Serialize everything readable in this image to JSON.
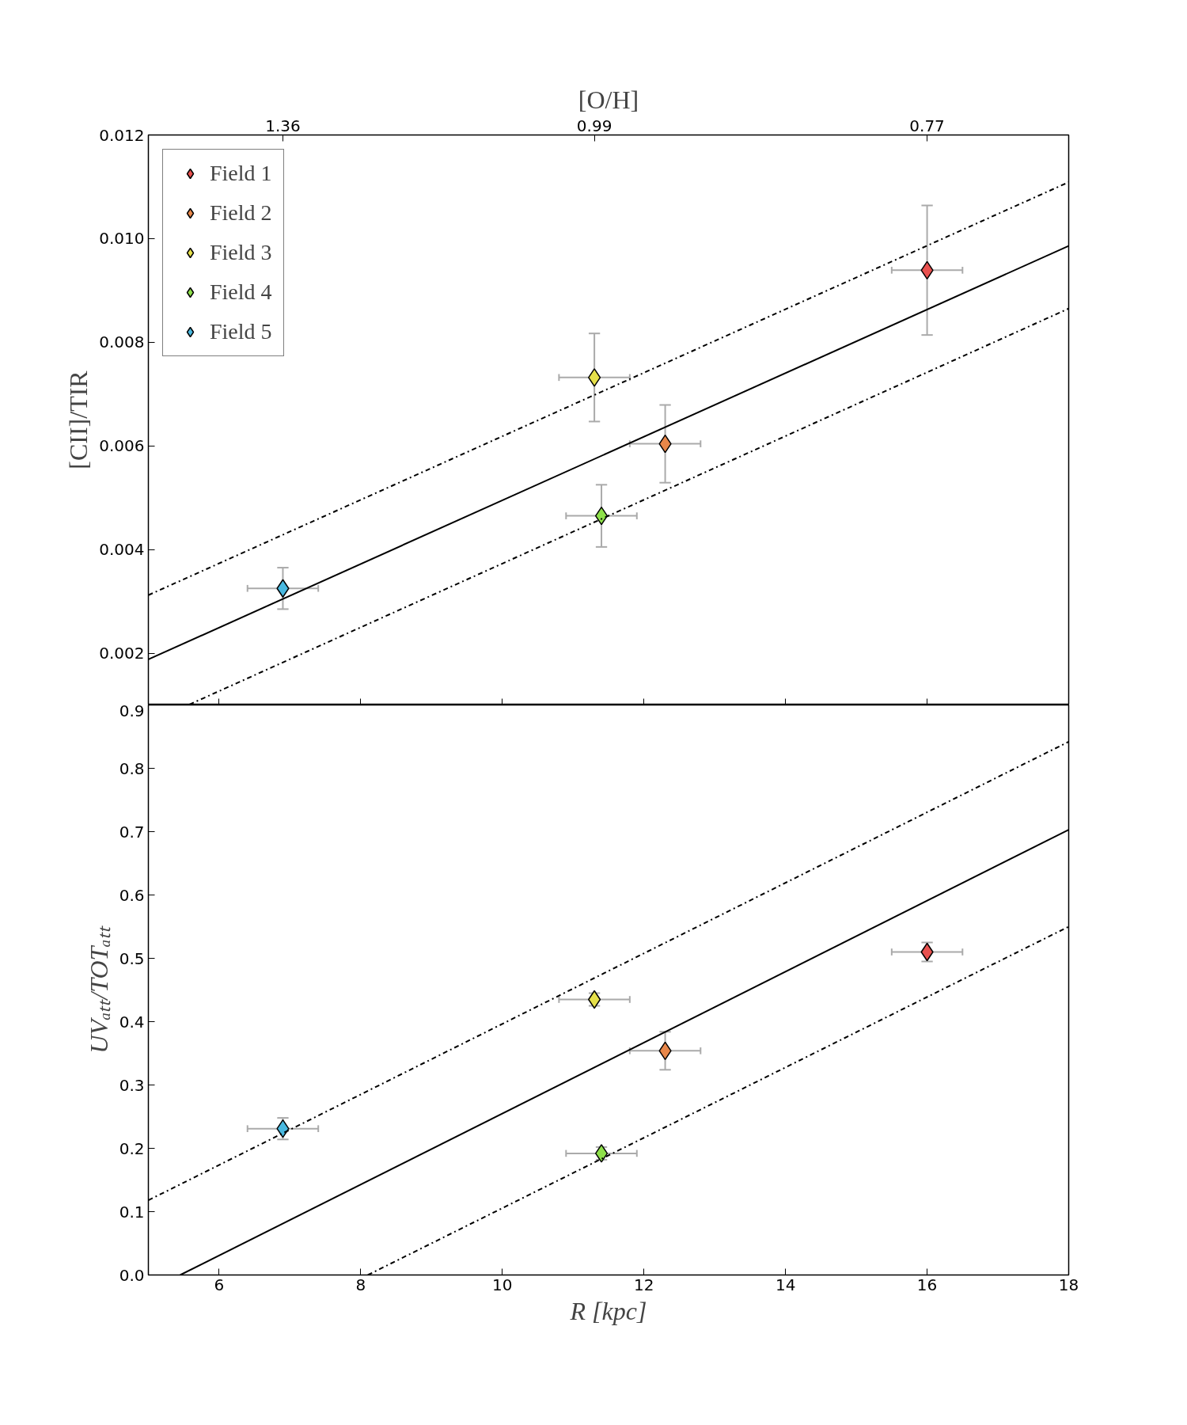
{
  "chart_data": [
    {
      "type": "scatter",
      "ylabel": "[CII]/TIR",
      "x2label": "[O/H]",
      "xlim": [
        5,
        18
      ],
      "ylim": [
        0.001,
        0.012
      ],
      "xticks": [
        6,
        8,
        10,
        12,
        14,
        16,
        18
      ],
      "yticks": [
        0.002,
        0.004,
        0.006,
        0.008,
        {
          "value": 0.01,
          "label": "0.010"
        },
        0.012
      ],
      "annotations": [
        {
          "text": "1.36",
          "x": 6.9
        },
        {
          "text": "0.99",
          "x": 11.3
        },
        {
          "text": "0.77",
          "x": 16.0
        }
      ],
      "tick_labels": "y",
      "grid": false,
      "legend": "top left",
      "marker": "diamond",
      "series": [
        {
          "name": "Field 1",
          "type": "scatter",
          "color": "#e8514f",
          "x": [
            16.0
          ],
          "values": [
            0.00939
          ],
          "errors": [
            0.00125
          ],
          "xerrors": [
            0.5
          ]
        },
        {
          "name": "Field 2",
          "type": "scatter",
          "color": "#e8874a",
          "x": [
            12.3
          ],
          "values": [
            0.00604
          ],
          "errors": [
            0.00075
          ],
          "xerrors": [
            0.5
          ]
        },
        {
          "name": "Field 3",
          "type": "scatter",
          "color": "#e6e04a",
          "x": [
            11.3
          ],
          "values": [
            0.00732
          ],
          "errors": [
            0.00085
          ],
          "xerrors": [
            0.5
          ]
        },
        {
          "name": "Field 4",
          "type": "scatter",
          "color": "#8ee04a",
          "x": [
            11.4
          ],
          "values": [
            0.00465
          ],
          "errors": [
            0.0006
          ],
          "xerrors": [
            0.5
          ]
        },
        {
          "name": "Field 5",
          "type": "scatter",
          "color": "#4ab9e0",
          "x": [
            6.9
          ],
          "values": [
            0.00325
          ],
          "errors": [
            0.0004
          ],
          "xerrors": [
            0.5
          ]
        },
        {
          "type": "line",
          "marker": "none",
          "color": "#000000",
          "line_style": "solid",
          "x": [
            5,
            18
          ],
          "values": [
            0.00188,
            0.00986
          ]
        },
        {
          "type": "line",
          "marker": "none",
          "color": "#000000",
          "line_style": "dashdot",
          "x": [
            5,
            18
          ],
          "values": [
            0.00312,
            0.01109
          ]
        },
        {
          "type": "line",
          "marker": "none",
          "color": "#000000",
          "line_style": "dashdot",
          "x": [
            5.58,
            18
          ],
          "values": [
            0.00101,
            0.00865
          ]
        }
      ]
    },
    {
      "type": "scatter",
      "ylabel": "UVₐₜₜ/TOTₐₜₜ",
      "xlabel": "R [kpc]",
      "xlim": [
        5,
        18
      ],
      "ylim": [
        0,
        0.9
      ],
      "xticks": [
        6,
        8,
        10,
        12,
        14,
        16,
        18
      ],
      "yticks": [
        {
          "value": 0,
          "label": "0.0"
        },
        0.1,
        0.2,
        0.3,
        0.4,
        0.5,
        0.6,
        0.7,
        0.8,
        0.9
      ],
      "grid": false,
      "legend": false,
      "marker": "diamond",
      "series": [
        {
          "type": "scatter",
          "color": "#e8514f",
          "x": [
            16.0
          ],
          "values": [
            0.51
          ],
          "errors": [
            0.015
          ],
          "xerrors": [
            0.5
          ]
        },
        {
          "type": "scatter",
          "color": "#e8874a",
          "x": [
            12.3
          ],
          "values": [
            0.354
          ],
          "errors": [
            0.03
          ],
          "xerrors": [
            0.5
          ]
        },
        {
          "type": "scatter",
          "color": "#e6e04a",
          "x": [
            11.3
          ],
          "values": [
            0.435
          ],
          "errors": [
            0.01
          ],
          "xerrors": [
            0.5
          ]
        },
        {
          "type": "scatter",
          "color": "#8ee04a",
          "x": [
            11.4
          ],
          "values": [
            0.192
          ],
          "errors": [
            0.01
          ],
          "xerrors": [
            0.5
          ]
        },
        {
          "type": "scatter",
          "color": "#4ab9e0",
          "x": [
            6.9
          ],
          "values": [
            0.231
          ],
          "errors": [
            0.017
          ],
          "xerrors": [
            0.5
          ]
        },
        {
          "type": "line",
          "marker": "none",
          "color": "#000000",
          "line_style": "solid",
          "x": [
            5.45,
            18
          ],
          "values": [
            0,
            0.703
          ]
        },
        {
          "type": "line",
          "marker": "none",
          "color": "#000000",
          "line_style": "dashdot",
          "x": [
            5,
            18
          ],
          "values": [
            0.118,
            0.842
          ]
        },
        {
          "type": "line",
          "marker": "none",
          "color": "#000000",
          "line_style": "dashdot",
          "x": [
            8.1,
            18
          ],
          "values": [
            0,
            0.55
          ]
        }
      ]
    }
  ]
}
